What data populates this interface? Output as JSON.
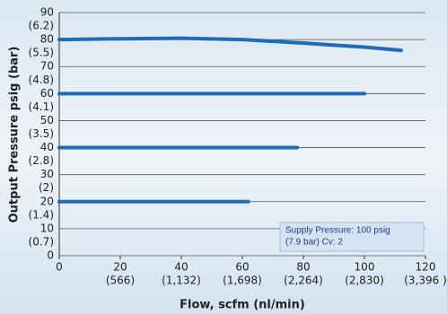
{
  "chart_data": {
    "type": "line",
    "xlabel": "Flow, scfm (nl/min)",
    "ylabel": "Output Pressure psig (bar)",
    "xlim": [
      0,
      120
    ],
    "ylim": [
      0,
      90
    ],
    "xticks": [
      0,
      20,
      40,
      60,
      80,
      100,
      120
    ],
    "x2ticks": [
      {
        "value": 20,
        "label": "(566)"
      },
      {
        "value": 40,
        "label": "(1,132)"
      },
      {
        "value": 60,
        "label": "(1,698)"
      },
      {
        "value": 80,
        "label": "(2,264)"
      },
      {
        "value": 100,
        "label": "(2,830)"
      },
      {
        "value": 120,
        "label": "(3,396 )"
      }
    ],
    "yticks": [
      0,
      10,
      20,
      30,
      40,
      50,
      60,
      70,
      80,
      90
    ],
    "y2ticks": [
      {
        "value": 10,
        "label": "(0.7)"
      },
      {
        "value": 20,
        "label": "(1.4)"
      },
      {
        "value": 30,
        "label": "(2)"
      },
      {
        "value": 40,
        "label": "(2.8)"
      },
      {
        "value": 50,
        "label": "(3.5)"
      },
      {
        "value": 60,
        "label": "(4.1)"
      },
      {
        "value": 70,
        "label": "(4.8)"
      },
      {
        "value": 80,
        "label": "(5.5)"
      },
      {
        "value": 90,
        "label": "(6.2)"
      }
    ],
    "grid": true,
    "series": [
      {
        "color": "#1e6bb8",
        "x": [
          0,
          20,
          40,
          60,
          80,
          100,
          112
        ],
        "values": [
          80,
          80.3,
          80.5,
          80,
          78.7,
          77.2,
          76
        ]
      },
      {
        "color": "#1e6bb8",
        "x": [
          0,
          100
        ],
        "values": [
          60,
          60
        ]
      },
      {
        "color": "#1e6bb8",
        "x": [
          0,
          78
        ],
        "values": [
          40,
          40
        ]
      },
      {
        "color": "#1e6bb8",
        "x": [
          0,
          62
        ],
        "values": [
          20,
          20
        ]
      }
    ],
    "annotation": [
      "Supply Pressure: 100 psig",
      "(7.9 bar) Cv: 2"
    ]
  }
}
